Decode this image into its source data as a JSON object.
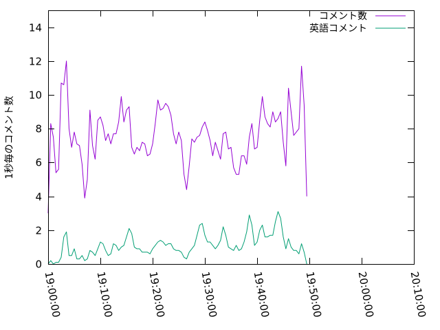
{
  "chart_data": {
    "type": "line",
    "title": "",
    "xlabel": "",
    "ylabel": "1秒毎のコメント数",
    "xlim": [
      "19:00:00",
      "20:10:00"
    ],
    "ylim": [
      0,
      15
    ],
    "x_ticks": [
      "19:00:00",
      "19:10:00",
      "19:20:00",
      "19:30:00",
      "19:40:00",
      "19:50:00",
      "20:00:00",
      "20:10:00"
    ],
    "y_ticks": [
      0,
      2,
      4,
      6,
      8,
      10,
      12,
      14
    ],
    "grid": false,
    "legend_position": "top-right",
    "series": [
      {
        "name": "コメント数",
        "color": "#9400d3",
        "values": [
          [
            0.0,
            3.0
          ],
          [
            0.5,
            8.3
          ],
          [
            1.0,
            7.5
          ],
          [
            1.5,
            5.4
          ],
          [
            2.0,
            5.6
          ],
          [
            2.5,
            10.7
          ],
          [
            3.0,
            10.6
          ],
          [
            3.5,
            12.0
          ],
          [
            4.0,
            8.0
          ],
          [
            4.5,
            6.9
          ],
          [
            5.0,
            7.8
          ],
          [
            5.5,
            7.1
          ],
          [
            6.0,
            7.0
          ],
          [
            6.5,
            5.9
          ],
          [
            7.0,
            3.9
          ],
          [
            7.5,
            5.0
          ],
          [
            8.0,
            9.1
          ],
          [
            8.5,
            7.0
          ],
          [
            9.0,
            6.2
          ],
          [
            9.5,
            8.5
          ],
          [
            10.0,
            8.7
          ],
          [
            10.5,
            8.2
          ],
          [
            11.0,
            7.3
          ],
          [
            11.5,
            7.7
          ],
          [
            12.0,
            7.1
          ],
          [
            12.5,
            7.7
          ],
          [
            13.0,
            7.7
          ],
          [
            13.5,
            8.4
          ],
          [
            14.0,
            9.9
          ],
          [
            14.5,
            8.4
          ],
          [
            15.0,
            9.1
          ],
          [
            15.5,
            9.3
          ],
          [
            16.0,
            6.9
          ],
          [
            16.5,
            6.5
          ],
          [
            17.0,
            6.9
          ],
          [
            17.5,
            6.7
          ],
          [
            18.0,
            7.2
          ],
          [
            18.5,
            7.1
          ],
          [
            19.0,
            6.4
          ],
          [
            19.5,
            6.5
          ],
          [
            20.0,
            7.1
          ],
          [
            20.5,
            8.3
          ],
          [
            21.0,
            9.7
          ],
          [
            21.5,
            9.1
          ],
          [
            22.0,
            9.2
          ],
          [
            22.5,
            9.5
          ],
          [
            23.0,
            9.3
          ],
          [
            23.5,
            8.8
          ],
          [
            24.0,
            7.7
          ],
          [
            24.5,
            7.1
          ],
          [
            25.0,
            7.8
          ],
          [
            25.5,
            7.3
          ],
          [
            26.0,
            5.3
          ],
          [
            26.5,
            4.4
          ],
          [
            27.0,
            5.8
          ],
          [
            27.5,
            7.4
          ],
          [
            28.0,
            7.2
          ],
          [
            28.5,
            7.5
          ],
          [
            29.0,
            7.6
          ],
          [
            29.5,
            8.1
          ],
          [
            30.0,
            8.4
          ],
          [
            30.5,
            7.9
          ],
          [
            31.0,
            7.3
          ],
          [
            31.5,
            6.4
          ],
          [
            32.0,
            7.2
          ],
          [
            32.5,
            6.7
          ],
          [
            33.0,
            6.2
          ],
          [
            33.5,
            7.7
          ],
          [
            34.0,
            7.8
          ],
          [
            34.5,
            6.8
          ],
          [
            35.0,
            6.9
          ],
          [
            35.5,
            5.7
          ],
          [
            36.0,
            5.3
          ],
          [
            36.5,
            5.3
          ],
          [
            37.0,
            6.4
          ],
          [
            37.5,
            6.4
          ],
          [
            38.0,
            5.9
          ],
          [
            38.5,
            7.5
          ],
          [
            39.0,
            8.3
          ],
          [
            39.5,
            6.8
          ],
          [
            40.0,
            6.9
          ],
          [
            40.5,
            8.5
          ],
          [
            41.0,
            9.9
          ],
          [
            41.5,
            8.7
          ],
          [
            42.0,
            8.3
          ],
          [
            42.5,
            8.1
          ],
          [
            43.0,
            9.0
          ],
          [
            43.5,
            8.4
          ],
          [
            44.0,
            8.6
          ],
          [
            44.5,
            9.0
          ],
          [
            45.0,
            7.2
          ],
          [
            45.5,
            5.8
          ],
          [
            46.0,
            10.4
          ],
          [
            46.5,
            9.0
          ],
          [
            47.0,
            7.6
          ],
          [
            47.5,
            7.8
          ],
          [
            48.0,
            8.0
          ],
          [
            48.5,
            11.7
          ],
          [
            49.0,
            9.4
          ],
          [
            49.5,
            4.0
          ]
        ]
      },
      {
        "name": "英語コメント",
        "color": "#009e73",
        "values": [
          [
            0.0,
            0.0
          ],
          [
            0.5,
            0.2
          ],
          [
            1.0,
            0.0
          ],
          [
            1.5,
            0.1
          ],
          [
            2.0,
            0.1
          ],
          [
            2.5,
            0.4
          ],
          [
            3.0,
            1.6
          ],
          [
            3.5,
            1.9
          ],
          [
            4.0,
            0.5
          ],
          [
            4.5,
            0.5
          ],
          [
            5.0,
            0.9
          ],
          [
            5.5,
            0.3
          ],
          [
            6.0,
            0.3
          ],
          [
            6.5,
            0.5
          ],
          [
            7.0,
            0.2
          ],
          [
            7.5,
            0.3
          ],
          [
            8.0,
            0.8
          ],
          [
            8.5,
            0.7
          ],
          [
            9.0,
            0.5
          ],
          [
            9.5,
            0.9
          ],
          [
            10.0,
            1.3
          ],
          [
            10.5,
            1.2
          ],
          [
            11.0,
            0.8
          ],
          [
            11.5,
            0.5
          ],
          [
            12.0,
            0.6
          ],
          [
            12.5,
            1.2
          ],
          [
            13.0,
            1.1
          ],
          [
            13.5,
            0.8
          ],
          [
            14.0,
            1.0
          ],
          [
            14.5,
            1.1
          ],
          [
            15.0,
            1.6
          ],
          [
            15.5,
            2.1
          ],
          [
            16.0,
            1.8
          ],
          [
            16.5,
            1.0
          ],
          [
            17.0,
            0.9
          ],
          [
            17.5,
            0.9
          ],
          [
            18.0,
            0.7
          ],
          [
            18.5,
            0.7
          ],
          [
            19.0,
            0.7
          ],
          [
            19.5,
            0.6
          ],
          [
            20.0,
            0.9
          ],
          [
            20.5,
            1.1
          ],
          [
            21.0,
            1.3
          ],
          [
            21.5,
            1.4
          ],
          [
            22.0,
            1.3
          ],
          [
            22.5,
            1.1
          ],
          [
            23.0,
            1.2
          ],
          [
            23.5,
            1.2
          ],
          [
            24.0,
            0.9
          ],
          [
            24.5,
            0.8
          ],
          [
            25.0,
            0.8
          ],
          [
            25.5,
            0.7
          ],
          [
            26.0,
            0.4
          ],
          [
            26.5,
            0.3
          ],
          [
            27.0,
            0.7
          ],
          [
            27.5,
            0.9
          ],
          [
            28.0,
            1.1
          ],
          [
            28.5,
            1.7
          ],
          [
            29.0,
            2.3
          ],
          [
            29.5,
            2.4
          ],
          [
            30.0,
            1.7
          ],
          [
            30.5,
            1.3
          ],
          [
            31.0,
            1.3
          ],
          [
            31.5,
            1.1
          ],
          [
            32.0,
            0.9
          ],
          [
            32.5,
            1.1
          ],
          [
            33.0,
            1.4
          ],
          [
            33.5,
            2.2
          ],
          [
            34.0,
            1.7
          ],
          [
            34.5,
            1.0
          ],
          [
            35.0,
            0.9
          ],
          [
            35.5,
            0.8
          ],
          [
            36.0,
            1.1
          ],
          [
            36.5,
            0.8
          ],
          [
            37.0,
            0.9
          ],
          [
            37.5,
            1.3
          ],
          [
            38.0,
            1.9
          ],
          [
            38.5,
            2.9
          ],
          [
            39.0,
            2.3
          ],
          [
            39.5,
            1.1
          ],
          [
            40.0,
            1.3
          ],
          [
            40.5,
            2.0
          ],
          [
            41.0,
            2.3
          ],
          [
            41.5,
            1.6
          ],
          [
            42.0,
            1.6
          ],
          [
            42.5,
            1.7
          ],
          [
            43.0,
            1.7
          ],
          [
            43.5,
            2.5
          ],
          [
            44.0,
            3.1
          ],
          [
            44.5,
            2.7
          ],
          [
            45.0,
            1.6
          ],
          [
            45.5,
            0.9
          ],
          [
            46.0,
            1.5
          ],
          [
            46.5,
            1.0
          ],
          [
            47.0,
            0.8
          ],
          [
            47.5,
            0.8
          ],
          [
            48.0,
            0.6
          ],
          [
            48.5,
            1.2
          ],
          [
            49.0,
            0.7
          ],
          [
            49.5,
            0.0
          ]
        ]
      }
    ]
  }
}
